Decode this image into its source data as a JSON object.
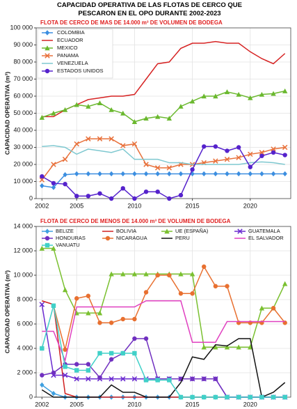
{
  "title": "CAPACIDAD OPERATIVA DE LAS FLOTAS DE CERCO QUE PESCARON EN EL OPO DURANTE 2002-2023",
  "chart_data": [
    {
      "type": "line",
      "subtitle": "FLOTA DE CERCO DE MAS DE  14.000 m³ DE VOLUMEN DE BODEGA",
      "ylabel": "CAPACIDAD OPERATIVA (m³)",
      "x": [
        2002,
        2003,
        2004,
        2005,
        2006,
        2007,
        2008,
        2009,
        2010,
        2011,
        2012,
        2013,
        2014,
        2015,
        2016,
        2017,
        2018,
        2019,
        2020,
        2021,
        2022,
        2023
      ],
      "xlim": [
        2001.5,
        2023.5
      ],
      "xticks": [
        2002,
        2005,
        2010,
        2015,
        2020
      ],
      "ylim": [
        0,
        100000
      ],
      "yticks": [
        0,
        {
          "value": 10000,
          "label": "10 000"
        },
        {
          "value": 20000,
          "label": "20 000"
        },
        {
          "value": 30000,
          "label": "30 000"
        },
        {
          "value": 40000,
          "label": "40 000"
        },
        {
          "value": 50000,
          "label": "50 000"
        },
        {
          "value": 60000,
          "label": "60 000"
        },
        {
          "value": 70000,
          "label": "70 000"
        },
        {
          "value": 80000,
          "label": "80 000"
        },
        {
          "value": 90000,
          "label": "90 000"
        },
        {
          "value": 100000,
          "label": "100 000"
        }
      ],
      "grid": true,
      "legend": "upper left",
      "series": [
        {
          "name": "COLOMBIA",
          "color": "#3b8ee0",
          "marker": "diamond",
          "values": [
            7500,
            6500,
            14000,
            14500,
            14500,
            14500,
            14500,
            14500,
            14500,
            14500,
            14500,
            14500,
            14500,
            14500,
            14500,
            14500,
            14500,
            14500,
            14500,
            14500,
            14500,
            14500
          ]
        },
        {
          "name": "ECUADOR",
          "color": "#d62222",
          "marker": "none",
          "values": [
            48000,
            48000,
            52000,
            55000,
            58000,
            59000,
            60000,
            60000,
            61000,
            70000,
            79000,
            80000,
            88000,
            91000,
            91000,
            92000,
            91000,
            91000,
            86000,
            82000,
            79000,
            85000
          ]
        },
        {
          "name": "MEXICO",
          "color": "#6ab82e",
          "marker": "triangle",
          "values": [
            47500,
            50000,
            52000,
            55000,
            54000,
            56000,
            52000,
            50000,
            45000,
            47000,
            48000,
            47000,
            54000,
            57000,
            60000,
            60000,
            62500,
            61000,
            59000,
            61000,
            61500,
            63000
          ]
        },
        {
          "name": "PANAMA",
          "color": "#e8703a",
          "marker": "x",
          "values": [
            11000,
            20000,
            23000,
            32000,
            35000,
            35000,
            35000,
            31000,
            32000,
            20000,
            18000,
            18000,
            20000,
            20000,
            21000,
            22000,
            23000,
            24000,
            26000,
            27000,
            29000,
            30000
          ]
        },
        {
          "name": "VENEZUELA",
          "color": "#7ec8d0",
          "marker": "none",
          "values": [
            30500,
            31000,
            30000,
            26000,
            29000,
            28000,
            27000,
            29000,
            23000,
            23000,
            23000,
            21000,
            21000,
            20000,
            20000,
            20000,
            20000,
            20000,
            21000,
            21500,
            21000,
            20000
          ]
        },
        {
          "name": "ESTADOS UNIDOS",
          "color": "#5522cc",
          "marker": "circle",
          "values": [
            13000,
            9000,
            8500,
            1500,
            1500,
            3000,
            0,
            6000,
            0,
            4000,
            4000,
            0,
            2000,
            17000,
            30500,
            30500,
            28000,
            30000,
            18500,
            25000,
            27000,
            25500
          ]
        }
      ]
    },
    {
      "type": "line",
      "subtitle": "FLOTA DE CERCO DE MENOS DE 14.000 m³ DE VOLUMEN DE BODEGA",
      "ylabel": "CAPACIDAD OPERATIVA (m³)",
      "x": [
        2002,
        2003,
        2004,
        2005,
        2006,
        2007,
        2008,
        2009,
        2010,
        2011,
        2012,
        2013,
        2014,
        2015,
        2016,
        2017,
        2018,
        2019,
        2020,
        2021,
        2022,
        2023
      ],
      "xlim": [
        2001.5,
        2023.5
      ],
      "xticks": [
        2002,
        2005,
        2010,
        2015,
        2020
      ],
      "ylim": [
        0,
        14000
      ],
      "yticks": [
        0,
        {
          "value": 2000,
          "label": "2 000"
        },
        {
          "value": 4000,
          "label": "4 000"
        },
        {
          "value": 6000,
          "label": "6 000"
        },
        {
          "value": 8000,
          "label": "8 000"
        },
        {
          "value": 10000,
          "label": "10 000"
        },
        {
          "value": 12000,
          "label": "12 000"
        },
        {
          "value": 14000,
          "label": "14 000"
        }
      ],
      "grid": true,
      "legend": "top",
      "series": [
        {
          "name": "BELIZE",
          "color": "#3fa0e0",
          "marker": "diamond",
          "values": [
            1000,
            300,
            0,
            0,
            0,
            0,
            0,
            0,
            0,
            0,
            0,
            0,
            0,
            0,
            0,
            0,
            0,
            0,
            0,
            0,
            0,
            0
          ]
        },
        {
          "name": "BOLIVIA",
          "color": "#d02020",
          "marker": "none",
          "values": [
            7900,
            7600,
            300,
            0,
            0,
            0,
            0,
            0,
            0,
            0,
            0,
            0,
            0,
            0,
            0,
            0,
            0,
            0,
            0,
            0,
            0,
            0
          ]
        },
        {
          "name": "UE (ESPAÑA)",
          "color": "#7ac030",
          "marker": "triangle",
          "values": [
            12200,
            12200,
            8800,
            6900,
            6900,
            6900,
            10100,
            10100,
            10100,
            10100,
            10100,
            10100,
            10100,
            10100,
            4100,
            4100,
            4100,
            4100,
            4100,
            7300,
            7300,
            9300
          ]
        },
        {
          "name": "GUATEMALA",
          "color": "#6a2ad0",
          "marker": "x",
          "values": [
            7600,
            1800,
            1800,
            1500,
            1500,
            1500,
            1500,
            1500,
            1500,
            1500,
            1500,
            1500,
            1500,
            1500,
            1500,
            1500,
            0,
            0,
            0,
            0,
            0,
            0
          ]
        },
        {
          "name": "HONDURAS",
          "color": "#7030c0",
          "marker": "circle",
          "values": [
            1800,
            2000,
            2700,
            2700,
            2700,
            1600,
            3100,
            3600,
            4800,
            4800,
            1500,
            1500,
            1500,
            1500,
            1500,
            1500,
            0,
            0,
            0,
            0,
            0,
            0
          ]
        },
        {
          "name": "NICARAGUA",
          "color": "#e87030",
          "marker": "circle",
          "values": [
            null,
            7500,
            3900,
            8100,
            8300,
            6100,
            6100,
            6400,
            6400,
            8600,
            10000,
            10000,
            8500,
            8500,
            10700,
            9100,
            9100,
            6100,
            6100,
            6100,
            7300,
            6100
          ]
        },
        {
          "name": "PERU",
          "color": "#111111",
          "marker": "none",
          "values": [
            600,
            0,
            0,
            0,
            0,
            0,
            1000,
            400,
            400,
            0,
            0,
            0,
            1200,
            3300,
            3100,
            4300,
            4200,
            4800,
            4800,
            0,
            400,
            1200
          ]
        },
        {
          "name": "EL SALVADOR",
          "color": "#e040c0",
          "marker": "none",
          "values": [
            5400,
            5400,
            3000,
            7400,
            7400,
            7400,
            7400,
            7400,
            7400,
            7900,
            7900,
            7900,
            7900,
            4500,
            4500,
            4500,
            6200,
            6200,
            6200,
            6200,
            6200,
            6200
          ]
        },
        {
          "name": "VANUATU",
          "color": "#40d0c8",
          "marker": "square",
          "values": [
            4000,
            7500,
            2500,
            2200,
            2200,
            3600,
            3600,
            3600,
            3600,
            1400,
            1400,
            1400,
            0,
            0,
            0,
            0,
            0,
            0,
            0,
            0,
            0,
            0
          ]
        }
      ]
    }
  ]
}
